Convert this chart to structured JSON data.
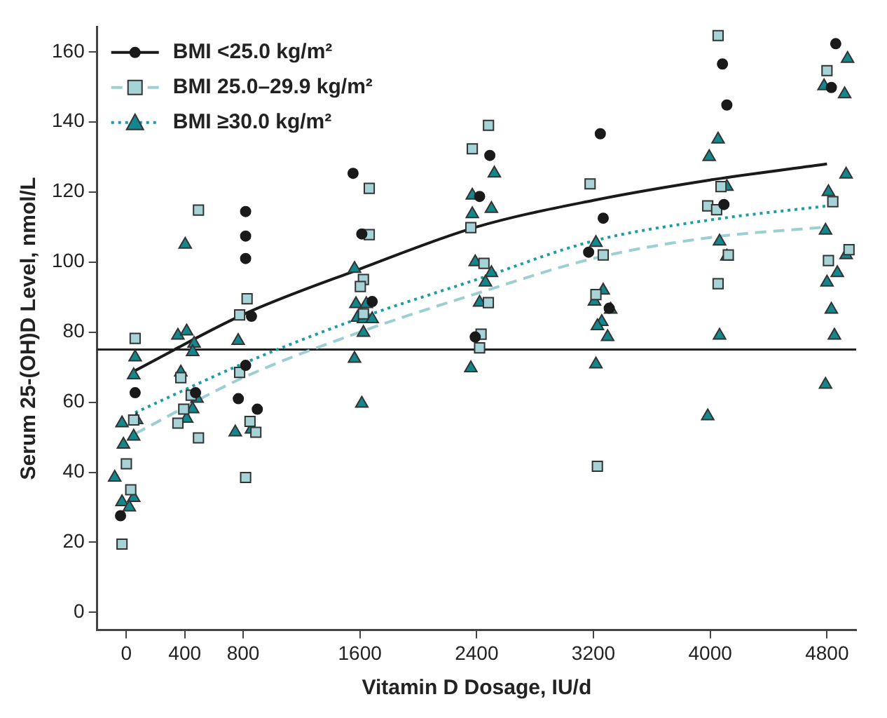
{
  "chart_data": {
    "type": "scatter",
    "xlabel": "Vitamin D Dosage, IU/d",
    "ylabel": "Serum 25-(OH)D Level, nmol/L",
    "xlim": [
      -200,
      5000
    ],
    "ylim": [
      -5,
      167
    ],
    "xticks": [
      0,
      400,
      800,
      1600,
      2400,
      3200,
      4000,
      4800
    ],
    "yticks": [
      0,
      20,
      40,
      60,
      80,
      100,
      120,
      140,
      160
    ],
    "grid": false,
    "legend": "top left",
    "ref_lines": [
      {
        "axis": "y",
        "value": 75,
        "color": "#222222",
        "line_style": "solid"
      }
    ],
    "series": [
      {
        "name": "BMI <25.0 kg/m²",
        "type": "scatter",
        "marker": "circle",
        "color": "#1a1a1a",
        "x": [
          -40,
          60,
          474,
          817,
          817,
          817,
          857,
          817,
          767,
          897,
          1553,
          1613,
          1684,
          2490,
          2420,
          2390,
          4860,
          4084,
          4114,
          3247,
          4830,
          4094,
          3267,
          3167,
          3308
        ],
        "values": [
          27.6,
          62.7,
          62.7,
          114.4,
          107.4,
          101,
          84.5,
          70.5,
          61,
          58,
          125.3,
          108,
          88.7,
          130.4,
          118.7,
          78.6,
          162.3,
          156.5,
          144.8,
          136.6,
          149.8,
          116.4,
          112.5,
          102.8,
          86.8
        ]
      },
      {
        "name": "BMI 25.0–29.9 kg/m²",
        "type": "scatter",
        "marker": "square",
        "color": "#a6d3d6",
        "x": [
          60,
          494,
          50,
          0,
          30,
          -30,
          373,
          444,
          393,
          353,
          494,
          827,
          776,
          776,
          847,
          887,
          817,
          1664,
          1664,
          1624,
          1603,
          1624,
          2481,
          2370,
          2360,
          2450,
          2480,
          2430,
          2420,
          4054,
          4800,
          3177,
          4074,
          3983,
          4044,
          4840,
          3267,
          4124,
          4951,
          4810,
          4054,
          3217,
          3227
        ],
        "values": [
          78.2,
          114.8,
          54.9,
          42.4,
          35,
          19.5,
          67,
          62,
          58,
          54,
          49.8,
          89.5,
          84.9,
          68.5,
          54.5,
          51.4,
          38.5,
          121,
          107.8,
          95,
          93,
          85.2,
          139,
          132.3,
          109.8,
          99.6,
          88.4,
          79.4,
          75.5,
          164.6,
          154.6,
          122.3,
          121.5,
          116,
          114.9,
          117.2,
          102,
          102,
          103.5,
          100.4,
          93.8,
          90.7,
          41.7
        ]
      },
      {
        "name": "BMI ≥30.0 kg/m²",
        "type": "scatter",
        "marker": "triangle",
        "color": "#13878c",
        "x": [
          60,
          50,
          -30,
          70,
          50,
          -20,
          -80,
          -30,
          50,
          20,
          403,
          353,
          413,
          464,
          454,
          373,
          484,
          454,
          413,
          766,
          746,
          857,
          1563,
          1573,
          1644,
          1583,
          1624,
          1684,
          1624,
          1563,
          1613,
          2521,
          2370,
          2370,
          2501,
          2390,
          2501,
          2460,
          2420,
          2360,
          4941,
          4780,
          4921,
          4054,
          3993,
          4931,
          4114,
          4810,
          4790,
          3217,
          4064,
          4114,
          4931,
          4871,
          4800,
          3267,
          3207,
          3318,
          3257,
          3227,
          3297,
          4830,
          4064,
          4851,
          3217,
          4790,
          3983
        ],
        "values": [
          72.8,
          67.7,
          54,
          54.9,
          50.2,
          47.9,
          38.5,
          31.5,
          32.7,
          30,
          105,
          79,
          80.2,
          76.7,
          74.3,
          68.5,
          61,
          58,
          55.3,
          77.5,
          51.4,
          52.2,
          98.1,
          88,
          88,
          84.1,
          83.7,
          83.7,
          79.8,
          72.4,
          59.6,
          125.3,
          119,
          113.7,
          115.2,
          100,
          96.9,
          94.2,
          88.4,
          69.7,
          158,
          150.2,
          147.9,
          135,
          130,
          125,
          121.5,
          120,
          109,
          105.5,
          105.9,
          101.6,
          102,
          96.9,
          94.2,
          91.9,
          88.7,
          86.4,
          82.9,
          81.7,
          78.6,
          86.4,
          79,
          79,
          70.8,
          65,
          56
        ]
      },
      {
        "type": "line",
        "line_style": "solid",
        "marker": "none",
        "color": "#1a1a1a",
        "x": [
          60,
          800,
          1600,
          2400,
          3200,
          4000,
          4800
        ],
        "values": [
          69,
          85,
          98,
          110,
          117.6,
          123.4,
          128
        ]
      },
      {
        "type": "line",
        "line_style": "dashed",
        "marker": "none",
        "color": "#9ccfd3",
        "x": [
          60,
          800,
          1600,
          2400,
          3200,
          4000,
          4800
        ],
        "values": [
          51,
          67,
          80,
          91,
          101,
          107,
          110
        ]
      },
      {
        "type": "line",
        "line_style": "dotted",
        "marker": "none",
        "color": "#1a9da3",
        "x": [
          60,
          800,
          1600,
          2400,
          3200,
          4000,
          4800
        ],
        "values": [
          57,
          71,
          84,
          95,
          106,
          112,
          116
        ]
      }
    ]
  }
}
